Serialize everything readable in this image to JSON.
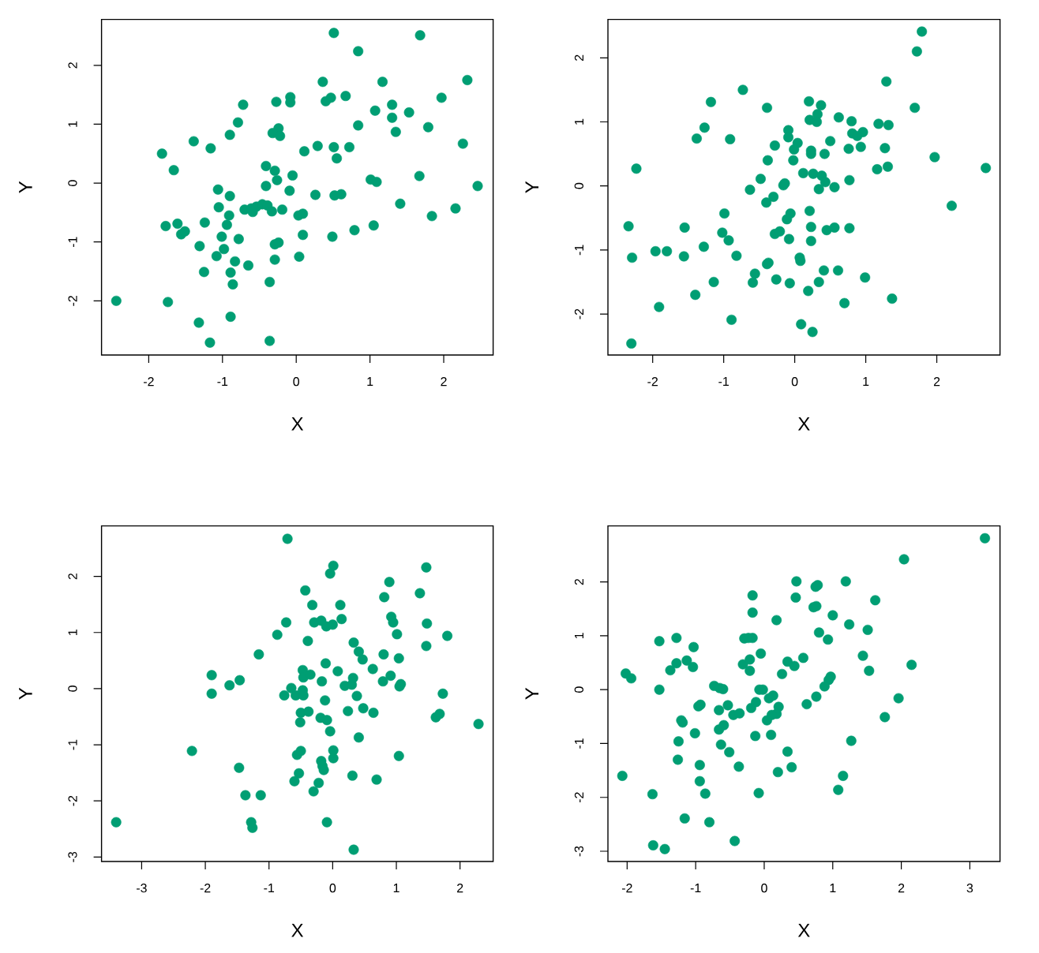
{
  "chart_data": [
    {
      "type": "scatter",
      "xlabel": "X",
      "ylabel": "Y",
      "color": "#009e73",
      "marker": "circle",
      "xlim": [
        -2.64,
        2.67
      ],
      "ylim": [
        -2.92,
        2.78
      ],
      "xticks": [
        -2,
        -1,
        0,
        1,
        2
      ],
      "yticks": [
        -2,
        -1,
        0,
        1,
        2
      ],
      "x": [
        0.51,
        1.68,
        0.84,
        0.36,
        1.17,
        2.32,
        -0.08,
        -0.08,
        -0.27,
        -0.72,
        0.4,
        0.47,
        0.67,
        1.07,
        1.3,
        1.53,
        1.97,
        1.3,
        -0.79,
        0.84,
        1.79,
        1.35,
        -0.9,
        -0.24,
        -0.32,
        -0.22,
        -1.39,
        -1.16,
        -1.82,
        0.11,
        0.29,
        0.51,
        0.72,
        0.55,
        2.26,
        -1.66,
        -0.41,
        -0.29,
        -0.26,
        -0.05,
        -0.41,
        -1.06,
        -0.9,
        -0.09,
        0.26,
        0.52,
        0.61,
        1.01,
        1.09,
        1.67,
        2.46,
        -1.05,
        -0.7,
        -0.61,
        -0.54,
        -0.46,
        -0.39,
        -0.33,
        -0.19,
        -0.59,
        -0.91,
        0.03,
        0.09,
        1.41,
        2.16,
        1.84,
        -1.77,
        -1.61,
        -1.56,
        -1.51,
        -1.24,
        -0.94,
        -1.01,
        -0.78,
        0.09,
        0.49,
        0.79,
        1.05,
        -1.31,
        -0.98,
        -1.08,
        -0.29,
        -0.24,
        0.04,
        -0.29,
        -0.83,
        -0.65,
        -1.25,
        -0.89,
        -0.86,
        -0.36,
        -2.44,
        -1.74,
        -1.32,
        -0.89,
        -1.17,
        -0.36
      ],
      "values": [
        2.55,
        2.51,
        2.24,
        1.72,
        1.72,
        1.75,
        1.46,
        1.37,
        1.38,
        1.33,
        1.39,
        1.45,
        1.48,
        1.23,
        1.33,
        1.2,
        1.45,
        1.11,
        1.03,
        0.98,
        0.95,
        0.87,
        0.82,
        0.93,
        0.85,
        0.8,
        0.71,
        0.59,
        0.5,
        0.54,
        0.63,
        0.61,
        0.61,
        0.42,
        0.67,
        0.22,
        0.29,
        0.21,
        0.05,
        0.13,
        -0.05,
        -0.11,
        -0.22,
        -0.13,
        -0.2,
        -0.21,
        -0.19,
        0.06,
        0.02,
        0.12,
        -0.05,
        -0.41,
        -0.45,
        -0.43,
        -0.4,
        -0.36,
        -0.38,
        -0.48,
        -0.45,
        -0.49,
        -0.55,
        -0.55,
        -0.52,
        -0.35,
        -0.43,
        -0.56,
        -0.73,
        -0.69,
        -0.87,
        -0.82,
        -0.67,
        -0.71,
        -0.91,
        -0.95,
        -0.88,
        -0.91,
        -0.8,
        -0.72,
        -1.07,
        -1.12,
        -1.24,
        -1.04,
        -1.01,
        -1.25,
        -1.3,
        -1.33,
        -1.4,
        -1.51,
        -1.52,
        -1.72,
        -1.68,
        -2.0,
        -2.02,
        -2.37,
        -2.27,
        -2.71,
        -2.68
      ]
    },
    {
      "type": "scatter",
      "xlabel": "X",
      "ylabel": "Y",
      "color": "#009e73",
      "marker": "circle",
      "xlim": [
        -2.63,
        2.89
      ],
      "ylim": [
        -2.64,
        2.6
      ],
      "xticks": [
        -2,
        -1,
        0,
        1,
        2
      ],
      "yticks": [
        -2,
        -1,
        0,
        1,
        2
      ],
      "x": [
        1.79,
        1.72,
        1.29,
        -0.73,
        -1.18,
        -0.39,
        0.2,
        0.37,
        0.32,
        0.21,
        0.31,
        0.62,
        0.8,
        1.69,
        -1.27,
        -1.38,
        -0.91,
        -0.09,
        -0.09,
        0.04,
        -0.28,
        -0.01,
        -0.02,
        0.23,
        0.23,
        0.5,
        0.42,
        0.81,
        0.96,
        0.88,
        0.76,
        0.93,
        1.18,
        1.32,
        1.27,
        1.16,
        1.31,
        1.97,
        2.69,
        -2.23,
        -0.38,
        -0.48,
        -0.63,
        -0.16,
        -0.14,
        -0.3,
        -0.4,
        0.12,
        0.26,
        0.38,
        0.43,
        0.34,
        0.56,
        0.77,
        2.21,
        -0.99,
        -0.06,
        -0.11,
        0.21,
        0.23,
        0.45,
        0.56,
        0.77,
        -2.34,
        -1.55,
        -1.02,
        -0.93,
        -0.28,
        -0.21,
        -0.08,
        0.23,
        -2.29,
        -1.96,
        -1.8,
        -1.56,
        -1.28,
        -0.82,
        0.07,
        0.08,
        -0.37,
        -0.39,
        0.41,
        0.61,
        -0.56,
        -0.59,
        -0.26,
        -0.07,
        0.34,
        0.19,
        0.99,
        -1.14,
        -1.4,
        0.7,
        1.37,
        -1.91,
        -0.89,
        0.09,
        0.25,
        -2.3
      ],
      "values": [
        2.41,
        2.1,
        1.63,
        1.5,
        1.31,
        1.22,
        1.32,
        1.26,
        1.12,
        1.03,
        1.0,
        1.07,
        1.01,
        1.22,
        0.91,
        0.74,
        0.73,
        0.87,
        0.76,
        0.67,
        0.63,
        0.57,
        0.4,
        0.55,
        0.5,
        0.7,
        0.5,
        0.82,
        0.84,
        0.78,
        0.58,
        0.61,
        0.97,
        0.95,
        0.59,
        0.26,
        0.3,
        0.45,
        0.28,
        0.27,
        0.4,
        0.11,
        -0.06,
        0.01,
        0.04,
        -0.17,
        -0.26,
        0.2,
        0.19,
        0.16,
        0.06,
        -0.05,
        -0.02,
        0.09,
        -0.31,
        -0.43,
        -0.43,
        -0.52,
        -0.39,
        -0.64,
        -0.69,
        -0.65,
        -0.66,
        -0.63,
        -0.65,
        -0.73,
        -0.85,
        -0.75,
        -0.71,
        -0.83,
        -0.86,
        -1.12,
        -1.02,
        -1.02,
        -1.1,
        -0.95,
        -1.09,
        -1.12,
        -1.17,
        -1.2,
        -1.22,
        -1.32,
        -1.32,
        -1.37,
        -1.51,
        -1.46,
        -1.52,
        -1.5,
        -1.64,
        -1.43,
        -1.5,
        -1.7,
        -1.83,
        -1.76,
        -1.89,
        -2.09,
        -2.16,
        -2.28,
        -2.46
      ]
    },
    {
      "type": "scatter",
      "xlabel": "X",
      "ylabel": "Y",
      "color": "#009e73",
      "marker": "circle",
      "xlim": [
        -3.63,
        2.52
      ],
      "ylim": [
        -3.08,
        2.9
      ],
      "xticks": [
        -3,
        -2,
        -1,
        0,
        1,
        2
      ],
      "yticks": [
        -3,
        -2,
        -1,
        0,
        1,
        2
      ],
      "x": [
        -0.71,
        0.01,
        -0.04,
        1.47,
        0.89,
        -0.43,
        0.81,
        1.37,
        -0.32,
        0.12,
        -0.29,
        -0.18,
        -0.1,
        0.0,
        0.14,
        -0.73,
        -0.87,
        -0.39,
        0.92,
        0.95,
        1.01,
        1.48,
        1.8,
        1.47,
        -1.16,
        0.33,
        0.41,
        0.47,
        0.63,
        0.8,
        1.04,
        -1.9,
        -1.62,
        -1.46,
        -1.9,
        -0.47,
        -0.46,
        -0.35,
        -0.11,
        0.08,
        -0.17,
        0.19,
        0.3,
        0.32,
        0.79,
        0.91,
        1.05,
        1.07,
        -0.76,
        -0.65,
        -0.58,
        -0.46,
        -0.47,
        0.38,
        -0.12,
        0.48,
        0.64,
        0.24,
        1.73,
        -0.5,
        -0.38,
        -0.51,
        -0.19,
        -0.09,
        -0.04,
        1.62,
        1.68,
        2.29,
        0.41,
        -2.21,
        -0.56,
        -0.5,
        0.01,
        0.01,
        -0.18,
        -0.16,
        -0.14,
        1.04,
        -1.47,
        -0.53,
        -0.6,
        -0.22,
        -0.3,
        0.31,
        0.69,
        -1.37,
        -1.13,
        -1.28,
        -1.26,
        -3.4,
        -0.09,
        0.33
      ],
      "values": [
        2.67,
        2.19,
        2.05,
        2.16,
        1.9,
        1.75,
        1.63,
        1.7,
        1.49,
        1.49,
        1.18,
        1.21,
        1.11,
        1.14,
        1.24,
        1.18,
        0.96,
        0.85,
        1.28,
        1.18,
        0.97,
        1.16,
        0.94,
        0.76,
        0.61,
        0.82,
        0.66,
        0.52,
        0.35,
        0.61,
        0.54,
        0.24,
        0.06,
        0.15,
        -0.09,
        0.33,
        0.2,
        0.25,
        0.45,
        0.31,
        0.13,
        0.05,
        0.07,
        0.19,
        0.13,
        0.23,
        0.04,
        0.08,
        -0.12,
        0.01,
        -0.12,
        -0.12,
        -0.03,
        -0.13,
        -0.21,
        -0.35,
        -0.43,
        -0.4,
        -0.09,
        -0.43,
        -0.41,
        -0.6,
        -0.52,
        -0.56,
        -0.76,
        -0.51,
        -0.45,
        -0.63,
        -0.87,
        -1.11,
        -1.18,
        -1.11,
        -1.1,
        -1.24,
        -1.29,
        -1.38,
        -1.45,
        -1.2,
        -1.41,
        -1.51,
        -1.65,
        -1.68,
        -1.83,
        -1.55,
        -1.62,
        -1.9,
        -1.9,
        -2.38,
        -2.48,
        -2.38,
        -2.38,
        -2.87
      ]
    },
    {
      "type": "scatter",
      "xlabel": "X",
      "ylabel": "Y",
      "color": "#009e73",
      "marker": "circle",
      "xlim": [
        -2.28,
        3.44
      ],
      "ylim": [
        -3.19,
        3.04
      ],
      "xticks": [
        -2,
        -1,
        0,
        1,
        2,
        3
      ],
      "yticks": [
        -3,
        -2,
        -1,
        0,
        1,
        2
      ],
      "x": [
        3.22,
        2.04,
        0.47,
        0.75,
        0.78,
        1.19,
        -0.17,
        0.46,
        1.62,
        0.72,
        0.76,
        -0.17,
        1.0,
        0.18,
        1.24,
        1.51,
        0.8,
        0.93,
        -1.53,
        -1.28,
        -1.03,
        -0.29,
        -0.23,
        -0.17,
        -0.05,
        1.44,
        -1.37,
        -1.28,
        -1.13,
        -1.04,
        -0.31,
        -0.21,
        -0.21,
        0.34,
        0.44,
        0.57,
        0.26,
        1.53,
        2.15,
        -2.02,
        -1.94,
        -1.53,
        -0.73,
        -0.65,
        -0.6,
        -0.07,
        -0.02,
        0.13,
        0.07,
        0.97,
        0.94,
        0.88,
        0.76,
        0.62,
        1.96,
        -0.96,
        -0.93,
        -0.66,
        -0.53,
        -0.45,
        -0.36,
        -0.19,
        -0.12,
        0.21,
        0.18,
        0.11,
        0.04,
        -1.21,
        -1.19,
        1.76,
        -0.66,
        -0.59,
        -1.01,
        -1.25,
        -0.13,
        0.1,
        -0.63,
        -0.51,
        1.27,
        0.34,
        -1.26,
        -0.94,
        -0.37,
        0.2,
        0.4,
        1.15,
        -2.07,
        -0.94,
        1.08,
        -1.63,
        -0.86,
        -0.08,
        -1.16,
        -0.8,
        -0.43,
        -1.62,
        -1.45
      ],
      "values": [
        2.81,
        2.42,
        2.01,
        1.91,
        1.94,
        2.01,
        1.75,
        1.71,
        1.66,
        1.53,
        1.55,
        1.43,
        1.38,
        1.29,
        1.21,
        1.11,
        1.06,
        0.93,
        0.9,
        0.96,
        0.79,
        0.95,
        0.96,
        0.96,
        0.67,
        0.63,
        0.36,
        0.49,
        0.54,
        0.42,
        0.47,
        0.56,
        0.35,
        0.52,
        0.44,
        0.59,
        0.29,
        0.35,
        0.46,
        0.3,
        0.21,
        0.0,
        0.07,
        0.03,
        0.01,
        0.0,
        0.0,
        -0.11,
        -0.16,
        0.24,
        0.18,
        0.06,
        -0.13,
        -0.27,
        -0.16,
        -0.31,
        -0.28,
        -0.38,
        -0.29,
        -0.47,
        -0.44,
        -0.34,
        -0.23,
        -0.32,
        -0.45,
        -0.47,
        -0.57,
        -0.57,
        -0.61,
        -0.51,
        -0.74,
        -0.66,
        -0.81,
        -0.96,
        -0.86,
        -0.84,
        -1.02,
        -1.16,
        -0.95,
        -1.15,
        -1.3,
        -1.4,
        -1.43,
        -1.53,
        -1.44,
        -1.6,
        -1.6,
        -1.7,
        -1.86,
        -1.94,
        -1.93,
        -1.92,
        -2.39,
        -2.46,
        -2.81,
        -2.89,
        -2.96
      ]
    }
  ]
}
